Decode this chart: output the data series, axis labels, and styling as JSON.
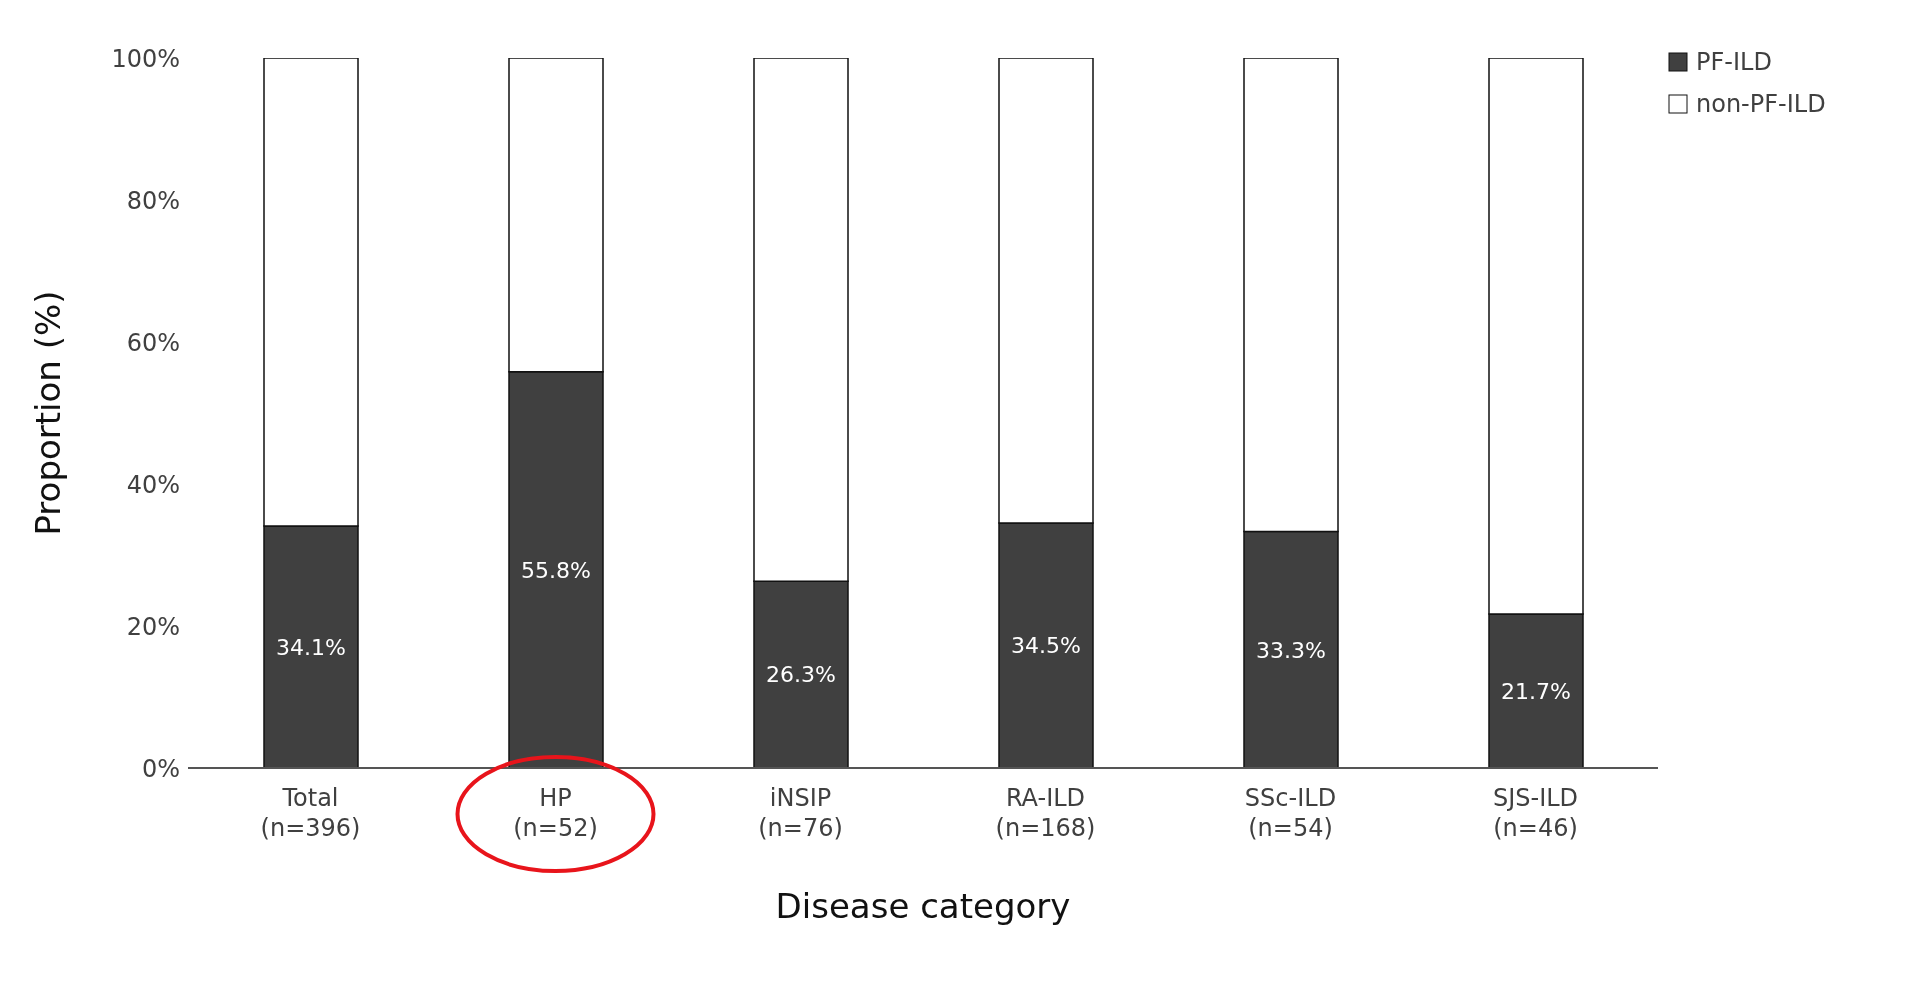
{
  "chart_data": {
    "type": "bar",
    "stacked": true,
    "xlabel": "Disease category",
    "ylabel": "Proportion (%)",
    "categories": [
      "Total\n(n=396)",
      "HP\n(n=52)",
      "iNSIP\n(n=76)",
      "RA-ILD\n(n=168)",
      "SSc-ILD\n(n=54)",
      "SJS-ILD\n(n=46)"
    ],
    "series": [
      {
        "name": "PF-ILD",
        "color": "#404040",
        "values": [
          34.1,
          55.8,
          26.3,
          34.5,
          33.3,
          21.7
        ],
        "value_labels": [
          "34.1%",
          "55.8%",
          "26.3%",
          "34.5%",
          "33.3%",
          "21.7%"
        ]
      },
      {
        "name": "non-PF-ILD",
        "color": "#ffffff",
        "values": [
          65.9,
          44.2,
          73.7,
          65.5,
          66.7,
          78.3
        ]
      }
    ],
    "ylim": [
      0,
      100
    ],
    "yticks": [
      {
        "value": 0,
        "label": "0%"
      },
      {
        "value": 20,
        "label": "20%"
      },
      {
        "value": 40,
        "label": "40%"
      },
      {
        "value": 60,
        "label": "60%"
      },
      {
        "value": 80,
        "label": "80%"
      },
      {
        "value": 100,
        "label": "100%"
      }
    ],
    "grid": false,
    "legend": "top right"
  }
}
